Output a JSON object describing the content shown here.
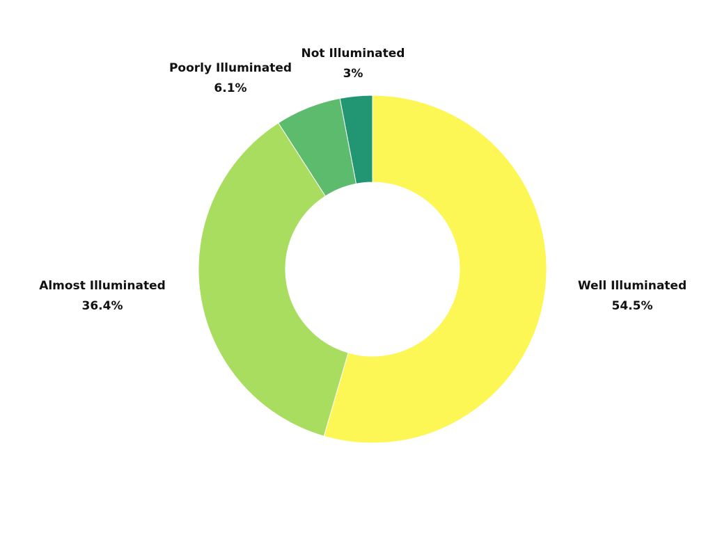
{
  "chart_data": {
    "type": "pie",
    "variant": "donut",
    "title": "",
    "start_angle": "top (12 o'clock)",
    "direction": "clockwise",
    "legend": "none (labels placed outside slices)",
    "slices": [
      {
        "label": "Well Illuminated",
        "value": 54.5,
        "value_label": "54.5%",
        "color": "#FDF755"
      },
      {
        "label": "Almost Illuminated",
        "value": 36.4,
        "value_label": "36.4%",
        "color": "#A8DD60"
      },
      {
        "label": "Poorly Illuminated",
        "value": 6.1,
        "value_label": "6.1%",
        "color": "#5DBB6E"
      },
      {
        "label": "Not Illuminated",
        "value": 3.0,
        "value_label": "3%",
        "color": "#229672"
      }
    ]
  }
}
